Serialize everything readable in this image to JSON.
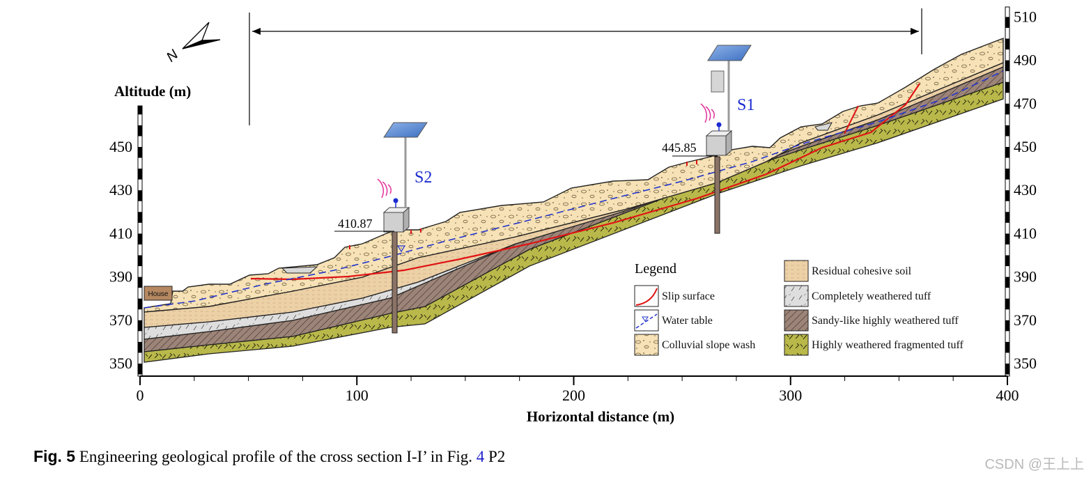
{
  "figure": {
    "ylabel": "Altitude (m)",
    "xlabel": "Horizontal distance (m)",
    "x_ticks": [
      "0",
      "100",
      "200",
      "300",
      "400"
    ],
    "y_ticks_left": [
      "350",
      "370",
      "390",
      "410",
      "430",
      "450"
    ],
    "y_ticks_right": [
      "350",
      "370",
      "390",
      "410",
      "430",
      "450",
      "470",
      "490",
      "510"
    ],
    "x_range": [
      0,
      400
    ],
    "y_range": [
      345,
      513
    ]
  },
  "stations": [
    {
      "id": "S2",
      "label": "S2",
      "elevation": "410.87",
      "x_m": 118
    },
    {
      "id": "S1",
      "label": "S1",
      "elevation": "445.85",
      "x_m": 266
    }
  ],
  "house_label": "House",
  "north_arrow_label": "N",
  "legend": {
    "title": "Legend",
    "items": [
      {
        "key": "slip",
        "label": "Slip surface"
      },
      {
        "key": "water",
        "label": "Water table"
      },
      {
        "key": "colluvial",
        "label": "Colluvial slope wash"
      },
      {
        "key": "residual",
        "label": "Residual cohesive soil"
      },
      {
        "key": "completely",
        "label": "Completely weathered tuff"
      },
      {
        "key": "sandy",
        "label": "Sandy-like highly weathered tuff"
      },
      {
        "key": "highly",
        "label": "Highly weathered fragmented tuff"
      }
    ]
  },
  "colors": {
    "colluvial": "#f6e2b6",
    "residual": "#edd3aa",
    "completely": "#dcdcdc",
    "sandy": "#9a8479",
    "highly": "#b7b64a",
    "slip": "#e01414",
    "water": "#2233cc",
    "station_label": "#1a2bd0",
    "antenna": "#e0309a",
    "caption_ref": "#2222cc"
  },
  "caption": {
    "label": "Fig. 5",
    "text": "Engineering geological profile of the cross section I-I’ in Fig.",
    "ref": "4",
    "suffix": "P2"
  },
  "watermark": "CSDN @王上上"
}
